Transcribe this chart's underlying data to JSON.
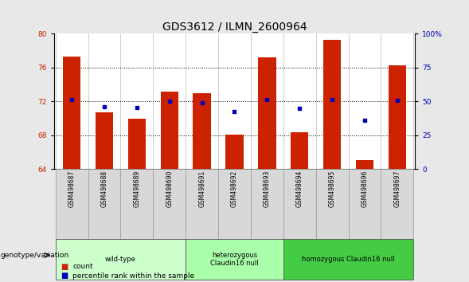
{
  "title": "GDS3612 / ILMN_2600964",
  "samples": [
    "GSM498687",
    "GSM498688",
    "GSM498689",
    "GSM498690",
    "GSM498691",
    "GSM498692",
    "GSM498693",
    "GSM498694",
    "GSM498695",
    "GSM498696",
    "GSM498697"
  ],
  "bar_values": [
    77.3,
    70.7,
    70.0,
    73.2,
    73.0,
    68.1,
    77.2,
    68.4,
    79.3,
    65.1,
    76.3
  ],
  "dot_values": [
    72.2,
    71.4,
    71.3,
    72.0,
    71.9,
    70.8,
    72.2,
    71.2,
    72.2,
    69.8,
    72.1
  ],
  "ylim": [
    64,
    80
  ],
  "yticks_left": [
    64,
    68,
    72,
    76,
    80
  ],
  "yticks_right": [
    0,
    25,
    50,
    75,
    100
  ],
  "ytick_right_labels": [
    "0",
    "25",
    "50",
    "75",
    "100%"
  ],
  "bar_color": "#cc2200",
  "dot_color": "#0000bb",
  "plot_bg": "#ffffff",
  "fig_bg": "#e8e8e8",
  "group_configs": [
    {
      "label": "wild-type",
      "indices": [
        0,
        1,
        2,
        3
      ],
      "color": "#ccffcc"
    },
    {
      "label": "heterozygous\nClaudin16 null",
      "indices": [
        4,
        5,
        6
      ],
      "color": "#aaffaa"
    },
    {
      "label": "homozygous Claudin16 null",
      "indices": [
        7,
        8,
        9,
        10
      ],
      "color": "#44cc44"
    }
  ],
  "genotype_label": "genotype/variation",
  "legend_count": "count",
  "legend_percentile": "percentile rank within the sample",
  "bar_width": 0.55,
  "title_fontsize": 10,
  "tick_fontsize": 6.5,
  "label_fontsize": 7
}
